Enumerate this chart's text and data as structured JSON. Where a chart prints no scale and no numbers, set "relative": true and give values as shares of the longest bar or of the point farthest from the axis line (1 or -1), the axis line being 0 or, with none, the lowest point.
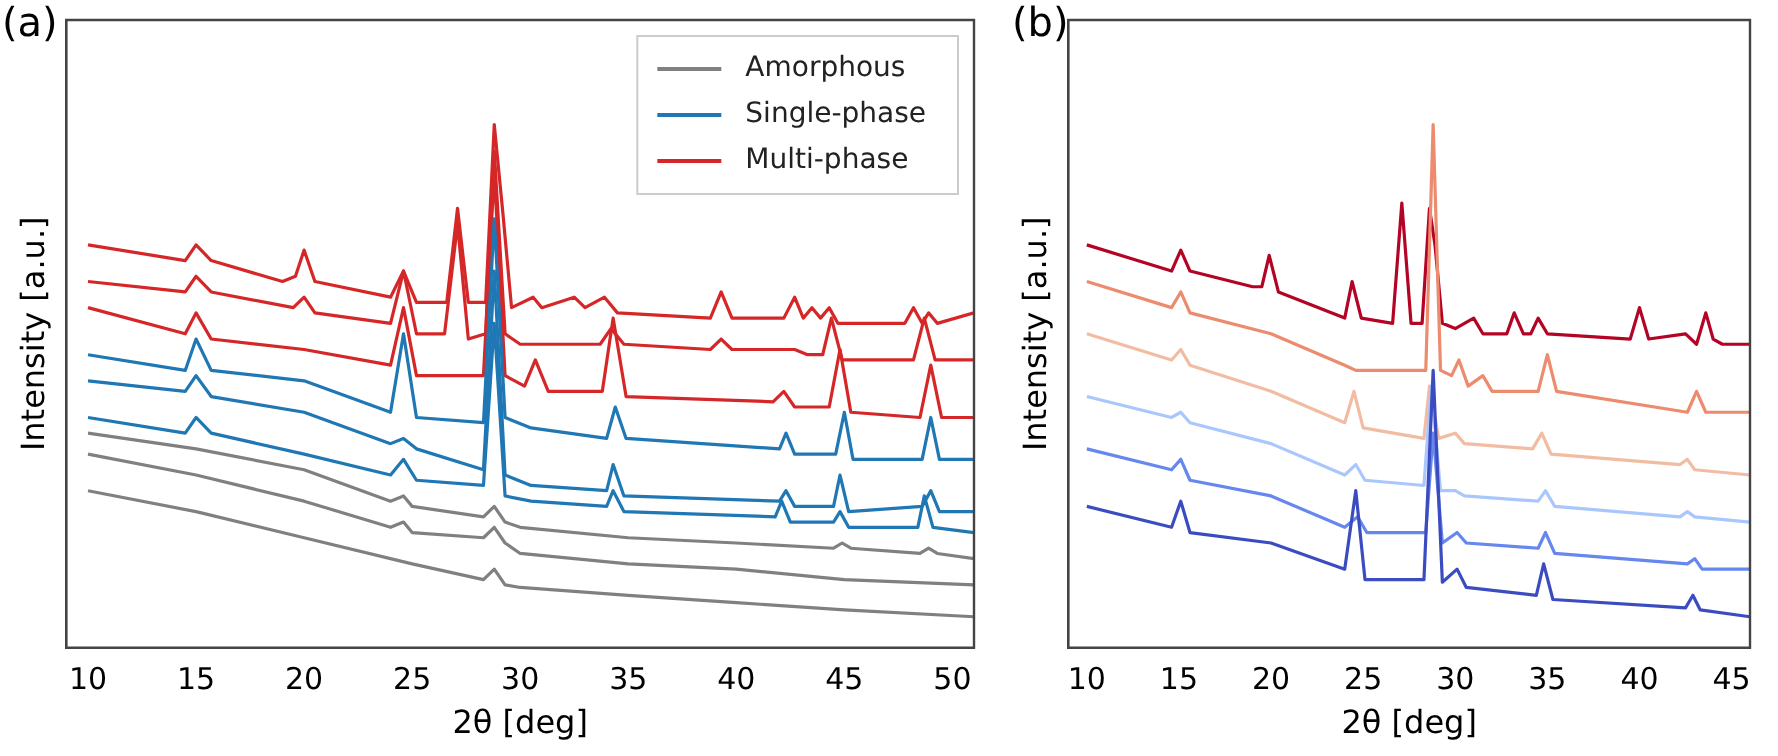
{
  "chart_data": [
    {
      "type": "line",
      "title": "(a)",
      "xlabel": "2θ [deg]",
      "ylabel": "Intensity [a.u.]",
      "relative": true,
      "tick_labels": "x",
      "grid": false,
      "legend": "top right",
      "marker": "none",
      "line_style": "solid",
      "xlim": [
        9,
        51
      ],
      "xticks": [
        10,
        15,
        20,
        25,
        30,
        35,
        40,
        45,
        50
      ],
      "series": [
        {
          "name": "Amorphous",
          "color": "#808080",
          "x": [
            10,
            15,
            20,
            25,
            28.3,
            28.8,
            29.3,
            30,
            35,
            40,
            45,
            51
          ],
          "values": [
            0.3,
            0.26,
            0.21,
            0.16,
            0.13,
            0.15,
            0.12,
            0.115,
            0.1,
            0.086,
            0.072,
            0.059
          ]
        },
        {
          "color": "#808080",
          "x": [
            10,
            15,
            20,
            24,
            24.6,
            25,
            28.3,
            28.8,
            29.3,
            30,
            35,
            40,
            45,
            51
          ],
          "values": [
            0.37,
            0.33,
            0.28,
            0.23,
            0.24,
            0.22,
            0.21,
            0.23,
            0.2,
            0.18,
            0.16,
            0.15,
            0.13,
            0.12
          ]
        },
        {
          "color": "#808080",
          "x": [
            10,
            15,
            20,
            24,
            24.6,
            25,
            28.3,
            28.8,
            29.3,
            30,
            35,
            40,
            44.5,
            44.9,
            45.3,
            48.5,
            48.9,
            49.3,
            51
          ],
          "values": [
            0.41,
            0.38,
            0.34,
            0.28,
            0.29,
            0.27,
            0.25,
            0.27,
            0.24,
            0.23,
            0.21,
            0.2,
            0.19,
            0.2,
            0.19,
            0.18,
            0.19,
            0.18,
            0.17
          ]
        },
        {
          "name": "Single-phase",
          "color": "#1f77b4",
          "x": [
            10,
            14.5,
            15,
            15.7,
            20,
            24,
            24.6,
            25.2,
            28.3,
            28.8,
            29.3,
            30.5,
            34,
            34.3,
            34.8,
            41.8,
            42.1,
            42.5,
            44.5,
            44.8,
            45.2,
            48.4,
            48.7,
            49.1,
            51
          ],
          "values": [
            0.44,
            0.41,
            0.44,
            0.41,
            0.37,
            0.33,
            0.36,
            0.32,
            0.31,
            0.62,
            0.29,
            0.28,
            0.27,
            0.3,
            0.26,
            0.25,
            0.28,
            0.24,
            0.24,
            0.26,
            0.23,
            0.23,
            0.29,
            0.23,
            0.22
          ]
        },
        {
          "color": "#1f77b4",
          "x": [
            10,
            14.5,
            15,
            15.7,
            20,
            24,
            24.6,
            25.2,
            28.3,
            28.8,
            29.3,
            30.5,
            34,
            34.3,
            34.8,
            42,
            42.3,
            42.7,
            44.5,
            44.8,
            45.2,
            48.6,
            49,
            49.4,
            51
          ],
          "values": [
            0.51,
            0.49,
            0.52,
            0.48,
            0.45,
            0.39,
            0.4,
            0.38,
            0.34,
            0.72,
            0.33,
            0.31,
            0.3,
            0.35,
            0.29,
            0.28,
            0.3,
            0.27,
            0.27,
            0.33,
            0.26,
            0.27,
            0.3,
            0.26,
            0.26
          ]
        },
        {
          "color": "#1f77b4",
          "x": [
            10,
            14.5,
            15,
            15.7,
            20,
            24,
            24.6,
            25.2,
            28.3,
            28.8,
            29.3,
            30.5,
            34,
            34.4,
            34.9,
            42,
            42.3,
            42.7,
            44.6,
            45,
            45.4,
            48.6,
            49,
            49.4,
            51
          ],
          "values": [
            0.56,
            0.53,
            0.59,
            0.53,
            0.51,
            0.45,
            0.6,
            0.44,
            0.43,
            0.82,
            0.44,
            0.42,
            0.4,
            0.46,
            0.4,
            0.38,
            0.41,
            0.37,
            0.37,
            0.45,
            0.36,
            0.36,
            0.44,
            0.36,
            0.36
          ]
        },
        {
          "name": "Multi-phase",
          "color": "#d62728",
          "x": [
            10,
            14.5,
            15,
            15.7,
            20,
            24,
            24.6,
            25.2,
            28.3,
            28.8,
            29.3,
            30.2,
            30.7,
            31.3,
            33.8,
            34.3,
            34.9,
            41.7,
            42.2,
            42.7,
            44.3,
            44.8,
            45.3,
            48.5,
            49,
            49.5,
            51
          ],
          "values": [
            0.65,
            0.6,
            0.64,
            0.59,
            0.57,
            0.54,
            0.65,
            0.52,
            0.52,
            0.91,
            0.52,
            0.5,
            0.55,
            0.49,
            0.49,
            0.63,
            0.48,
            0.47,
            0.49,
            0.46,
            0.46,
            0.57,
            0.45,
            0.44,
            0.54,
            0.44,
            0.44
          ]
        },
        {
          "color": "#d62728",
          "x": [
            10,
            14.5,
            15,
            15.7,
            19.5,
            20,
            20.5,
            24,
            24.6,
            25.2,
            26.5,
            27.1,
            27.6,
            28.4,
            28.8,
            29.3,
            30,
            31,
            32.5,
            33.7,
            34.2,
            34.8,
            38.8,
            39.3,
            39.8,
            41.6,
            42.7,
            43.3,
            44,
            44.4,
            44.9,
            48.2,
            48.7,
            49.2,
            51
          ],
          "values": [
            0.7,
            0.68,
            0.71,
            0.68,
            0.65,
            0.67,
            0.64,
            0.62,
            0.72,
            0.6,
            0.6,
            0.81,
            0.59,
            0.6,
            0.95,
            0.6,
            0.58,
            0.58,
            0.58,
            0.58,
            0.61,
            0.58,
            0.57,
            0.59,
            0.57,
            0.57,
            0.57,
            0.56,
            0.56,
            0.63,
            0.55,
            0.55,
            0.63,
            0.55,
            0.55
          ]
        },
        {
          "color": "#d62728",
          "x": [
            10,
            14.5,
            15,
            15.7,
            19,
            19.6,
            20,
            20.5,
            24,
            24.6,
            25.2,
            26.6,
            27.1,
            27.6,
            28.4,
            28.8,
            29.2,
            29.6,
            30.6,
            31,
            32.5,
            33,
            33.9,
            34.5,
            38.8,
            39.3,
            39.8,
            42.2,
            42.7,
            43.1,
            43.5,
            43.9,
            44.3,
            44.7,
            47.8,
            48.2,
            48.6,
            48.9,
            49.3,
            51
          ],
          "values": [
            0.77,
            0.74,
            0.77,
            0.74,
            0.7,
            0.71,
            0.76,
            0.7,
            0.67,
            0.72,
            0.66,
            0.66,
            0.84,
            0.66,
            0.66,
            1,
            0.83,
            0.65,
            0.67,
            0.65,
            0.67,
            0.65,
            0.67,
            0.64,
            0.63,
            0.68,
            0.63,
            0.63,
            0.67,
            0.63,
            0.65,
            0.63,
            0.65,
            0.62,
            0.62,
            0.65,
            0.62,
            0.64,
            0.62,
            0.64
          ]
        }
      ]
    },
    {
      "type": "line",
      "title": "(b)",
      "xlabel": "2θ [deg]",
      "ylabel": "Intensity [a.u.]",
      "relative": true,
      "tick_labels": "x",
      "grid": false,
      "marker": "none",
      "line_style": "solid",
      "xlim": [
        9,
        46
      ],
      "xticks": [
        10,
        15,
        20,
        25,
        30,
        35,
        40,
        45
      ],
      "series": [
        {
          "color": "#3b4cc0",
          "x": [
            10,
            14.6,
            15.1,
            15.6,
            20,
            24,
            24.6,
            25.1,
            28.3,
            28.8,
            29.3,
            30.1,
            30.6,
            34.4,
            34.8,
            35.3,
            42.5,
            42.9,
            43.3,
            46
          ],
          "values": [
            0.27,
            0.23,
            0.28,
            0.22,
            0.2,
            0.15,
            0.3,
            0.13,
            0.13,
            0.53,
            0.125,
            0.15,
            0.115,
            0.1,
            0.16,
            0.092,
            0.076,
            0.1,
            0.072,
            0.059
          ]
        },
        {
          "color": "#6687ed",
          "x": [
            10,
            14.6,
            15.1,
            15.6,
            20,
            24,
            24.7,
            25.2,
            28.4,
            28.8,
            29.3,
            30.1,
            30.6,
            34.5,
            34.9,
            35.4,
            42.6,
            43,
            43.4,
            46
          ],
          "values": [
            0.38,
            0.34,
            0.36,
            0.32,
            0.29,
            0.23,
            0.25,
            0.22,
            0.22,
            0.41,
            0.2,
            0.22,
            0.2,
            0.19,
            0.22,
            0.18,
            0.16,
            0.17,
            0.15,
            0.15
          ]
        },
        {
          "color": "#aac7fd",
          "x": [
            10,
            14.6,
            15.1,
            15.6,
            20,
            24,
            24.6,
            25.1,
            28.3,
            28.7,
            29.2,
            30,
            30.5,
            34.5,
            34.9,
            35.4,
            42.2,
            42.6,
            43,
            46
          ],
          "values": [
            0.48,
            0.44,
            0.45,
            0.43,
            0.39,
            0.33,
            0.35,
            0.32,
            0.31,
            0.5,
            0.3,
            0.3,
            0.29,
            0.28,
            0.3,
            0.27,
            0.25,
            0.26,
            0.25,
            0.24
          ]
        },
        {
          "color": "#f2bca3",
          "x": [
            10,
            14.6,
            15.1,
            15.6,
            20,
            24,
            24.5,
            25,
            28.3,
            28.6,
            29.1,
            30,
            30.5,
            34.2,
            34.7,
            35.2,
            42.2,
            42.6,
            43,
            46
          ],
          "values": [
            0.6,
            0.55,
            0.57,
            0.54,
            0.49,
            0.43,
            0.49,
            0.42,
            0.4,
            0.5,
            0.4,
            0.41,
            0.39,
            0.38,
            0.41,
            0.37,
            0.35,
            0.36,
            0.34,
            0.33
          ]
        },
        {
          "color": "#ec8b6d",
          "x": [
            10,
            14.6,
            15.1,
            15.6,
            20,
            24,
            24.6,
            28.4,
            28.8,
            29.2,
            29.8,
            30.2,
            30.7,
            31.5,
            32,
            34.5,
            35,
            35.5,
            42.6,
            43.1,
            43.6,
            46
          ],
          "values": [
            0.7,
            0.65,
            0.68,
            0.64,
            0.6,
            0.54,
            0.53,
            0.53,
            1,
            0.53,
            0.52,
            0.55,
            0.5,
            0.52,
            0.49,
            0.49,
            0.56,
            0.49,
            0.45,
            0.49,
            0.45,
            0.45
          ]
        },
        {
          "color": "#b40426",
          "x": [
            10,
            14.6,
            15.1,
            15.6,
            19,
            19.5,
            19.9,
            20.4,
            24,
            24.4,
            24.9,
            26.6,
            27.1,
            27.6,
            28.2,
            28.6,
            28.9,
            29.3,
            30,
            31,
            31.5,
            32.8,
            33.2,
            33.7,
            34.1,
            34.5,
            35,
            39.5,
            40,
            40.5,
            42.5,
            43.1,
            43.6,
            44,
            44.5,
            46
          ],
          "values": [
            0.77,
            0.72,
            0.76,
            0.72,
            0.69,
            0.69,
            0.75,
            0.68,
            0.63,
            0.7,
            0.63,
            0.62,
            0.85,
            0.62,
            0.62,
            0.84,
            0.77,
            0.62,
            0.61,
            0.63,
            0.6,
            0.6,
            0.64,
            0.6,
            0.6,
            0.63,
            0.6,
            0.59,
            0.65,
            0.59,
            0.6,
            0.58,
            0.64,
            0.59,
            0.58,
            0.58
          ]
        }
      ]
    }
  ]
}
